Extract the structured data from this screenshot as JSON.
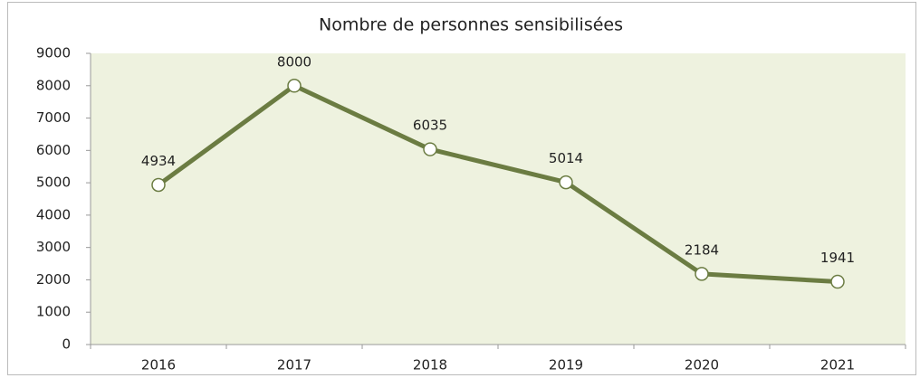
{
  "chart_data": {
    "type": "line",
    "title": "Nombre de personnes sensibilisées",
    "categories": [
      "2016",
      "2017",
      "2018",
      "2019",
      "2020",
      "2021"
    ],
    "values": [
      4934,
      8000,
      6035,
      5014,
      2184,
      1941
    ],
    "color": "#6b7c42",
    "plot_background": "#eef2df",
    "ylim": [
      0,
      9000
    ],
    "yticks": [
      0,
      1000,
      2000,
      3000,
      4000,
      5000,
      6000,
      7000,
      8000,
      9000
    ],
    "grid": false
  }
}
